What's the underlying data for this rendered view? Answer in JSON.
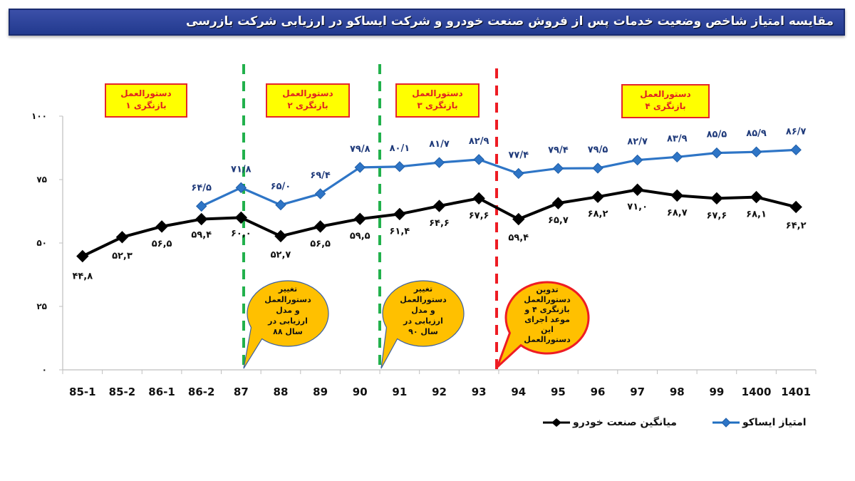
{
  "header": {
    "title": "مقایسه امتیاز شاخص وضعیت خدمات پس از فروش صنعت خودرو  و شرکت ایساکو در ارزیابی شرکت بازرسی"
  },
  "colors": {
    "title_bg": "#2a4196",
    "isaco": "#1f6fc1",
    "industry": "#000000",
    "divider_green": "#22b14c",
    "divider_red": "#ee1c24",
    "box_fill": "#ffff00",
    "box_border": "#e5262a",
    "bubble_fill": "#ffc000"
  },
  "boxes": [
    {
      "line1": "دستورالعمل",
      "line2": "بازنگری ۱"
    },
    {
      "line1": "دستورالعمل",
      "line2": "بازنگری ۲"
    },
    {
      "line1": "دستورالعمل",
      "line2": "بازنگری ۳"
    },
    {
      "line1": "دستورالعمل",
      "line2": "بازنگری ۴"
    }
  ],
  "bubbles": [
    {
      "lines": [
        "تغییر",
        "دستورالعمل",
        "و مدل",
        "ارزیابی  در",
        "سال ۸۸"
      ]
    },
    {
      "lines": [
        "تغییر",
        "دستورالعمل",
        "و مدل",
        "ارزیابی  در",
        "سال ۹۰"
      ]
    },
    {
      "lines": [
        "تدوین",
        "دستورالعمل",
        "بازنگری ۴ و",
        "موعد اجرای",
        "این",
        "دستورالعمل"
      ]
    }
  ],
  "legend": {
    "industry": "میانگین صنعت خودرو",
    "isaco": "امتیاز ایساکو"
  },
  "chart_data": {
    "type": "line",
    "title": "مقایسه امتیاز شاخص وضعیت خدمات پس از فروش صنعت خودرو  و شرکت ایساکو در ارزیابی شرکت بازرسی",
    "xlabel": "",
    "ylabel": "",
    "ylim": [
      0,
      100
    ],
    "yticks": [
      0,
      25,
      50,
      75,
      100
    ],
    "ytick_labels": [
      "۰",
      "۲۵",
      "۵۰",
      "۷۵",
      "۱۰۰"
    ],
    "grid": false,
    "legend_position": "bottom",
    "categories": [
      "85-1",
      "85-2",
      "86-1",
      "86-2",
      "87",
      "88",
      "89",
      "90",
      "91",
      "92",
      "93",
      "94",
      "95",
      "96",
      "97",
      "98",
      "99",
      "1400",
      "1401"
    ],
    "series": [
      {
        "name": "امتیاز ایساکو",
        "color": "#1f6fc1",
        "marker": "diamond",
        "values": [
          null,
          null,
          null,
          64.5,
          71.8,
          65.0,
          69.4,
          79.8,
          80.1,
          81.7,
          82.9,
          77.4,
          79.4,
          79.5,
          82.7,
          83.9,
          85.5,
          85.9,
          86.7
        ],
        "labels": [
          null,
          null,
          null,
          "۶۴/۵",
          "۷۱/۸",
          "۶۵/۰",
          "۶۹/۴",
          "۷۹/۸",
          "۸۰/۱",
          "۸۱/۷",
          "۸۲/۹",
          "۷۷/۴",
          "۷۹/۴",
          "۷۹/۵",
          "۸۲/۷",
          "۸۳/۹",
          "۸۵/۵",
          "۸۵/۹",
          "۸۶/۷"
        ]
      },
      {
        "name": "میانگین صنعت خودرو",
        "color": "#000000",
        "marker": "diamond",
        "values": [
          44.8,
          52.3,
          56.5,
          59.4,
          60.0,
          52.7,
          56.5,
          59.5,
          61.4,
          64.6,
          67.6,
          59.4,
          65.7,
          68.2,
          71.0,
          68.7,
          67.6,
          68.1,
          64.2
        ],
        "labels": [
          "۴۴,۸",
          "۵۲,۳",
          "۵۶,۵",
          "۵۹,۴",
          "۶۰,۰",
          "۵۲,۷",
          "۵۶,۵",
          "۵۹,۵",
          "۶۱,۴",
          "۶۴,۶",
          "۶۷,۶",
          "۵۹,۴",
          "۶۵,۷",
          "۶۸,۲",
          "۷۱,۰",
          "۶۸,۷",
          "۶۷,۶",
          "۶۸,۱",
          "۶۴,۲"
        ]
      }
    ],
    "annotations": [
      {
        "type": "vline",
        "style": "dashed",
        "color": "#22b14c",
        "between": [
          "87",
          "88"
        ],
        "note": "before 87 tick"
      },
      {
        "type": "vline",
        "style": "dashed",
        "color": "#22b14c",
        "between": [
          "90",
          "91"
        ]
      },
      {
        "type": "vline",
        "style": "dashed",
        "color": "#ee1c24",
        "between": [
          "93",
          "94"
        ]
      }
    ]
  }
}
